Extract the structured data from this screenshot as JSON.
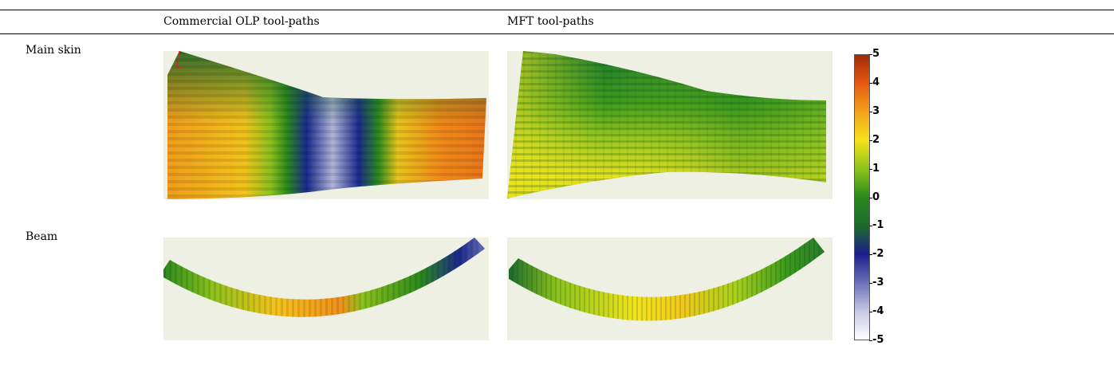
{
  "table": {
    "headers": [
      "Commercial OLP tool-paths",
      "MFT tool-paths"
    ],
    "rows": [
      {
        "label": "Main skin"
      },
      {
        "label": "Beam"
      }
    ]
  },
  "colorbar": {
    "ticks": [
      "5",
      "4",
      "3",
      "2",
      "1",
      "0",
      "-1",
      "-2",
      "-3",
      "-4",
      "-5"
    ],
    "range": [
      -5,
      5
    ],
    "colors": [
      "#a02a08",
      "#e45a12",
      "#f4a21c",
      "#f6e21a",
      "#8bc41c",
      "#2a8a1c",
      "#1c6a2c",
      "#1a1e8c",
      "#6a70b8",
      "#c8c8e4",
      "#ffffff"
    ]
  },
  "panel_background": "#eff0e4"
}
